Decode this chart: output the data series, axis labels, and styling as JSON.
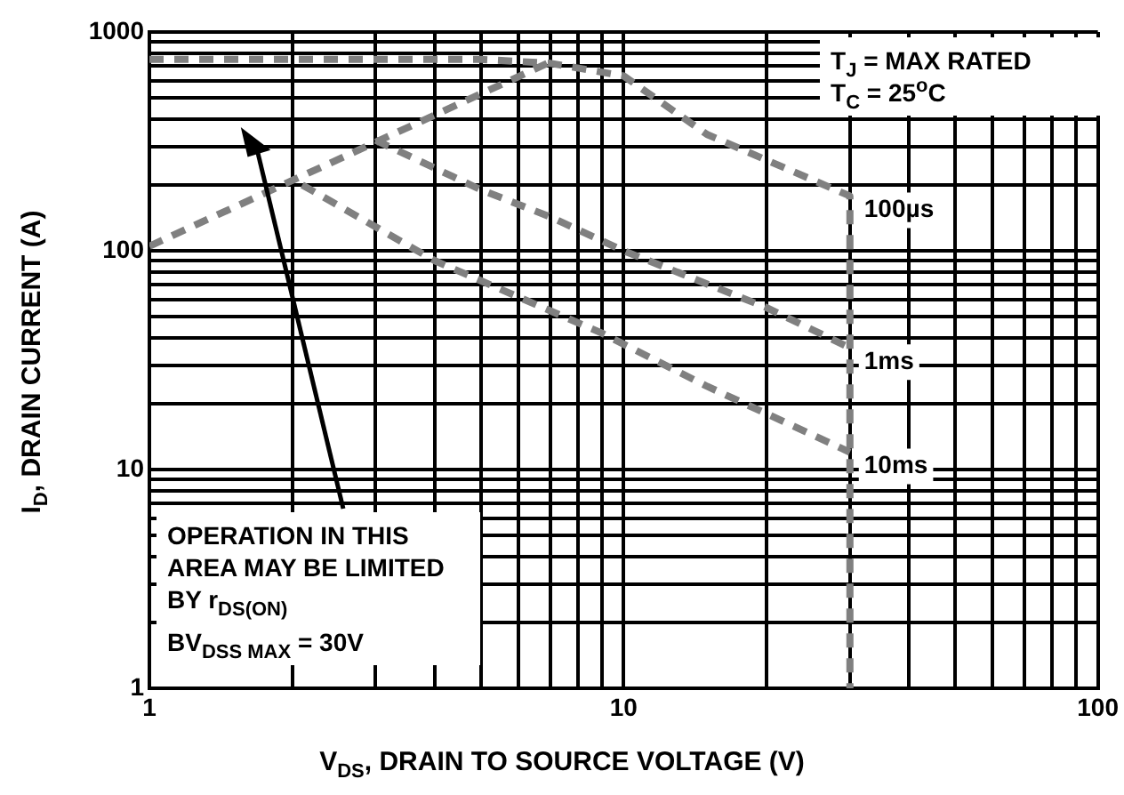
{
  "chart_data": {
    "type": "line",
    "xlabel": "V$_{DS}$, DRAIN TO SOURCE VOLTAGE (V)",
    "ylabel": "I$_{D}$, DRAIN CURRENT (A)",
    "log": "xy",
    "grid": true,
    "legend": false,
    "marker": "none",
    "line_style": "dashed",
    "xlim": [
      1,
      100
    ],
    "ylim": [
      1,
      1000
    ],
    "xticks": [
      1,
      {
        "value": 2,
        "label": null
      },
      {
        "value": 3,
        "label": null
      },
      {
        "value": 4,
        "label": null
      },
      {
        "value": 5,
        "label": null
      },
      {
        "value": 6,
        "label": null
      },
      {
        "value": 7,
        "label": null
      },
      {
        "value": 8,
        "label": null
      },
      {
        "value": 9,
        "label": null
      },
      10,
      {
        "value": 20,
        "label": null
      },
      {
        "value": 30,
        "label": null
      },
      {
        "value": 40,
        "label": null
      },
      {
        "value": 50,
        "label": null
      },
      {
        "value": 60,
        "label": null
      },
      {
        "value": 70,
        "label": null
      },
      {
        "value": 80,
        "label": null
      },
      {
        "value": 90,
        "label": null
      },
      100
    ],
    "yticks": [
      1,
      {
        "value": 2,
        "label": null
      },
      {
        "value": 3,
        "label": null
      },
      {
        "value": 4,
        "label": null
      },
      {
        "value": 5,
        "label": null
      },
      {
        "value": 6,
        "label": null
      },
      {
        "value": 7,
        "label": null
      },
      {
        "value": 8,
        "label": null
      },
      {
        "value": 9,
        "label": null
      },
      10,
      {
        "value": 20,
        "label": null
      },
      {
        "value": 30,
        "label": null
      },
      {
        "value": 40,
        "label": null
      },
      {
        "value": 50,
        "label": null
      },
      {
        "value": 60,
        "label": null
      },
      {
        "value": 70,
        "label": null
      },
      {
        "value": 80,
        "label": null
      },
      {
        "value": 90,
        "label": null
      },
      100,
      {
        "value": 200,
        "label": null
      },
      {
        "value": 300,
        "label": null
      },
      {
        "value": 400,
        "label": null
      },
      {
        "value": 500,
        "label": null
      },
      {
        "value": 600,
        "label": null
      },
      {
        "value": 700,
        "label": null
      },
      {
        "value": 800,
        "label": null
      },
      {
        "value": 900,
        "label": null
      },
      1000
    ],
    "series": [
      {
        "color": "#808080",
        "x": [
          1,
          7.2
        ],
        "values": [
          105,
          750
        ]
      },
      {
        "name": "100µs",
        "color": "#808080",
        "x": [
          1,
          5,
          7,
          10,
          15,
          20,
          30,
          30
        ],
        "values": [
          750,
          750,
          720,
          630,
          340,
          260,
          178,
          1
        ]
      },
      {
        "name": "1ms",
        "color": "#808080",
        "x": [
          3,
          5,
          7,
          10,
          20,
          30
        ],
        "values": [
          320,
          190,
          143,
          100,
          55,
          36
        ]
      },
      {
        "name": "10ms",
        "color": "#808080",
        "x": [
          2.1,
          4,
          9,
          15,
          30
        ],
        "values": [
          200,
          90,
          42,
          24,
          12
        ]
      }
    ],
    "annotations": [
      "T$_{J}$ = MAX RATED",
      "T$_{C}$ = 25$^{o}$C",
      "OPERATION IN THIS AREA MAY BE LIMITED BY r$_{DS(ON)}$",
      "BV$_{DSS MAX}$ = 30V"
    ]
  }
}
